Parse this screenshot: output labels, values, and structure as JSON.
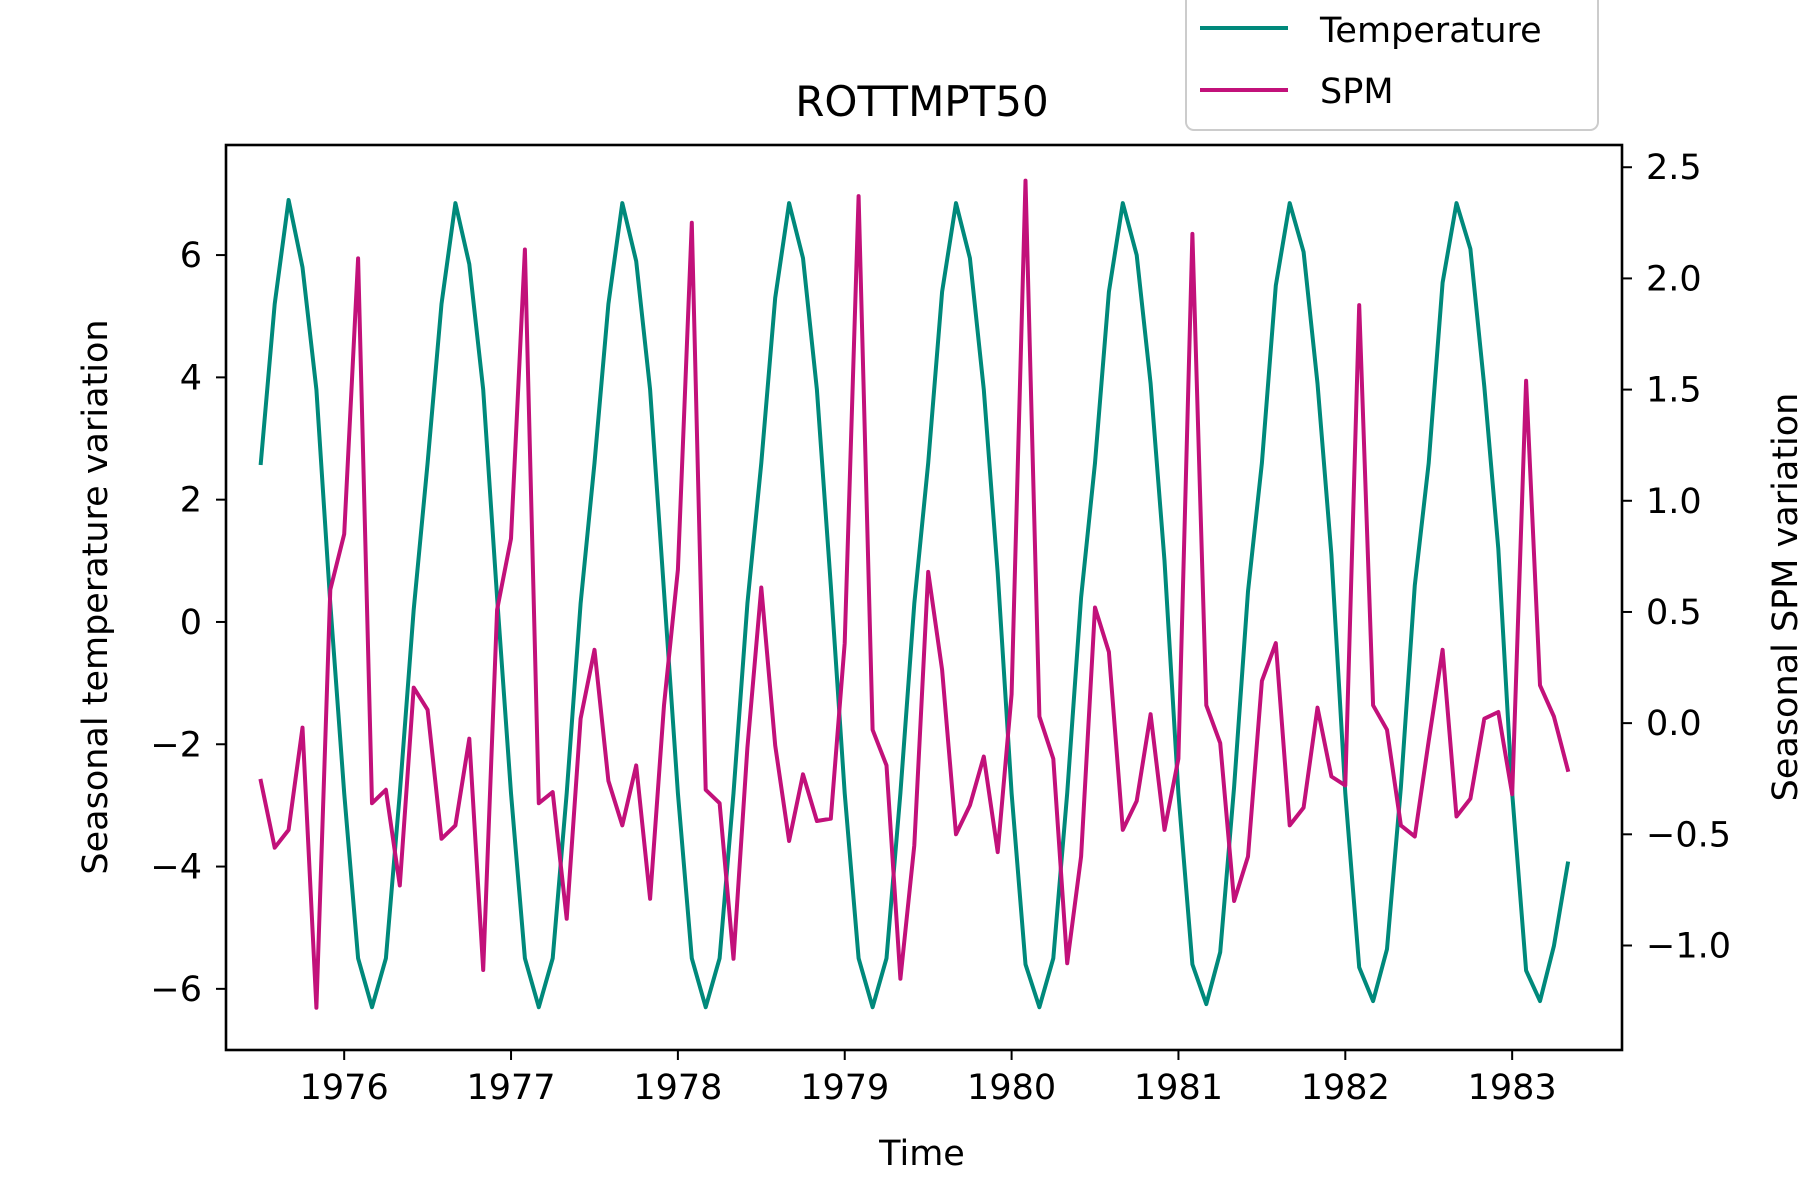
{
  "chart_data": {
    "type": "line",
    "title": "ROTTMPT50",
    "xlabel": "Time",
    "ylabel_left": "Seasonal temperature variation",
    "ylabel_right": "Seasonal SPM variation",
    "xlim": [
      1975.2917,
      1983.6583
    ],
    "ylim_left": [
      -7.0,
      7.8
    ],
    "ylim_right": [
      -1.47,
      2.6
    ],
    "x_ticks": [
      1976,
      1977,
      1978,
      1979,
      1980,
      1981,
      1982,
      1983
    ],
    "y_ticks_left": [
      -6,
      -4,
      -2,
      0,
      2,
      4,
      6
    ],
    "y_ticks_right": [
      -1.0,
      -0.5,
      0.0,
      0.5,
      1.0,
      1.5,
      2.0,
      2.5
    ],
    "y_tick_labels_left": [
      "−6",
      "−4",
      "−2",
      "0",
      "2",
      "4",
      "6"
    ],
    "y_tick_labels_right": [
      "−1.0",
      "−0.5",
      "0.0",
      "0.5",
      "1.0",
      "1.5",
      "2.0",
      "2.5"
    ],
    "legend": {
      "position": "upper-right, above plot",
      "entries": [
        "Temperature",
        "SPM"
      ]
    },
    "grid": false,
    "x_start": 1975.5,
    "x_step": 0.083333,
    "series": [
      {
        "name": "Temperature",
        "axis": "left",
        "color": "#00897b",
        "values": [
          2.6,
          5.2,
          6.9,
          5.8,
          3.8,
          0.3,
          -2.8,
          -5.5,
          -6.3,
          -5.5,
          -2.8,
          0.2,
          2.6,
          5.2,
          6.85,
          5.85,
          3.8,
          0.4,
          -2.8,
          -5.5,
          -6.3,
          -5.5,
          -2.8,
          0.3,
          2.6,
          5.2,
          6.85,
          5.9,
          3.8,
          0.5,
          -2.8,
          -5.5,
          -6.3,
          -5.5,
          -2.8,
          0.3,
          2.6,
          5.3,
          6.85,
          5.95,
          3.8,
          0.6,
          -2.8,
          -5.5,
          -6.3,
          -5.5,
          -2.8,
          0.3,
          2.6,
          5.4,
          6.85,
          5.95,
          3.8,
          0.8,
          -2.8,
          -5.6,
          -6.3,
          -5.5,
          -2.8,
          0.4,
          2.6,
          5.4,
          6.85,
          6.0,
          3.9,
          1.0,
          -2.8,
          -5.6,
          -6.25,
          -5.4,
          -2.7,
          0.5,
          2.6,
          5.5,
          6.85,
          6.05,
          3.9,
          1.1,
          -2.8,
          -5.65,
          -6.2,
          -5.35,
          -2.7,
          0.6,
          2.6,
          5.55,
          6.85,
          6.1,
          3.85,
          1.2,
          -2.8,
          -5.7,
          -6.2,
          -5.3,
          -3.95
        ]
      },
      {
        "name": "SPM",
        "axis": "right",
        "color": "#c2117a",
        "values": [
          -0.26,
          -0.56,
          -0.48,
          -0.02,
          -1.28,
          0.6,
          0.85,
          2.09,
          -0.36,
          -0.3,
          -0.73,
          0.16,
          0.06,
          -0.52,
          -0.46,
          -0.07,
          -1.11,
          0.51,
          0.83,
          2.13,
          -0.36,
          -0.31,
          -0.88,
          0.02,
          0.33,
          -0.26,
          -0.46,
          -0.19,
          -0.79,
          0.08,
          0.69,
          2.25,
          -0.3,
          -0.36,
          -1.06,
          -0.11,
          0.61,
          -0.1,
          -0.53,
          -0.23,
          -0.44,
          -0.43,
          0.36,
          2.37,
          -0.03,
          -0.19,
          -1.15,
          -0.55,
          0.68,
          0.24,
          -0.5,
          -0.37,
          -0.15,
          -0.58,
          0.13,
          2.44,
          0.03,
          -0.16,
          -1.08,
          -0.6,
          0.52,
          0.32,
          -0.48,
          -0.35,
          0.04,
          -0.48,
          -0.16,
          2.2,
          0.08,
          -0.09,
          -0.8,
          -0.6,
          0.19,
          0.36,
          -0.46,
          -0.38,
          0.07,
          -0.24,
          -0.28,
          1.88,
          0.08,
          -0.03,
          -0.46,
          -0.51,
          -0.08,
          0.33,
          -0.42,
          -0.34,
          0.02,
          0.05,
          -0.32,
          1.54,
          0.17,
          0.03,
          -0.21
        ]
      }
    ]
  }
}
